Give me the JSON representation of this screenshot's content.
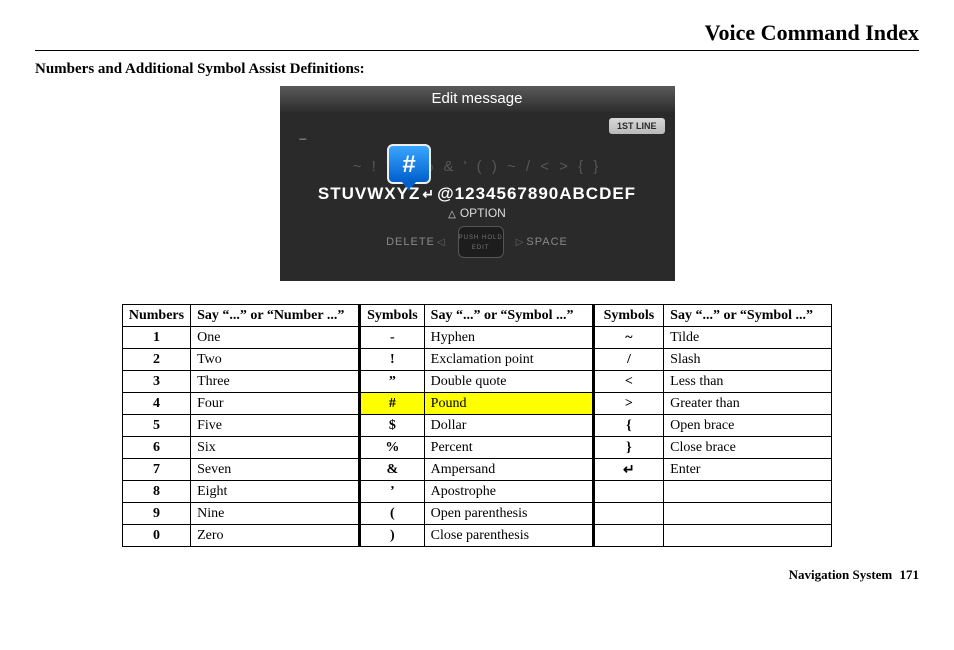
{
  "page_title": "Voice Command Index",
  "section_heading": "Numbers and Additional Symbol Assist Definitions:",
  "screenshot": {
    "title": "Edit message",
    "line_pill": "1ST LINE",
    "faint_row": "~ ! \" $ % & ' ( ) ~ / < > { }",
    "wheel_left": "STUVWXYZ",
    "wheel_right": "@1234567890ABCDEF",
    "hash": "#",
    "option_label": "OPTION",
    "delete_label": "DELETE",
    "space_label": "SPACE",
    "knob_line1": "PUSH HOLD",
    "knob_line2": "EDIT"
  },
  "tables": {
    "numbers": {
      "header_key": "Numbers",
      "header_val": "Say “...” or “Number ...”",
      "rows": [
        {
          "k": "1",
          "v": "One"
        },
        {
          "k": "2",
          "v": "Two"
        },
        {
          "k": "3",
          "v": "Three"
        },
        {
          "k": "4",
          "v": "Four"
        },
        {
          "k": "5",
          "v": "Five"
        },
        {
          "k": "6",
          "v": "Six"
        },
        {
          "k": "7",
          "v": "Seven"
        },
        {
          "k": "8",
          "v": "Eight"
        },
        {
          "k": "9",
          "v": "Nine"
        },
        {
          "k": "0",
          "v": "Zero"
        }
      ]
    },
    "symbols1": {
      "header_key": "Symbols",
      "header_val": "Say “...” or “Symbol ...”",
      "rows": [
        {
          "k": "-",
          "v": "Hyphen"
        },
        {
          "k": "!",
          "v": "Exclamation point"
        },
        {
          "k": "”",
          "v": "Double quote"
        },
        {
          "k": "#",
          "v": "Pound",
          "hl": true
        },
        {
          "k": "$",
          "v": "Dollar"
        },
        {
          "k": "%",
          "v": "Percent"
        },
        {
          "k": "&",
          "v": "Ampersand"
        },
        {
          "k": "’",
          "v": "Apostrophe"
        },
        {
          "k": "(",
          "v": "Open parenthesis"
        },
        {
          "k": ")",
          "v": "Close parenthesis"
        }
      ]
    },
    "symbols2": {
      "header_key": "Symbols",
      "header_val": "Say “...” or “Symbol ...”",
      "rows": [
        {
          "k": "~",
          "v": "Tilde"
        },
        {
          "k": "/",
          "v": "Slash"
        },
        {
          "k": "<",
          "v": "Less than"
        },
        {
          "k": ">",
          "v": "Greater than"
        },
        {
          "k": "{",
          "v": "Open brace"
        },
        {
          "k": "}",
          "v": "Close brace"
        },
        {
          "k": "↵",
          "v": "Enter",
          "enter": true
        }
      ]
    }
  },
  "footer": {
    "label": "Navigation System",
    "page": "171"
  },
  "highlight_color": "#ffff00"
}
